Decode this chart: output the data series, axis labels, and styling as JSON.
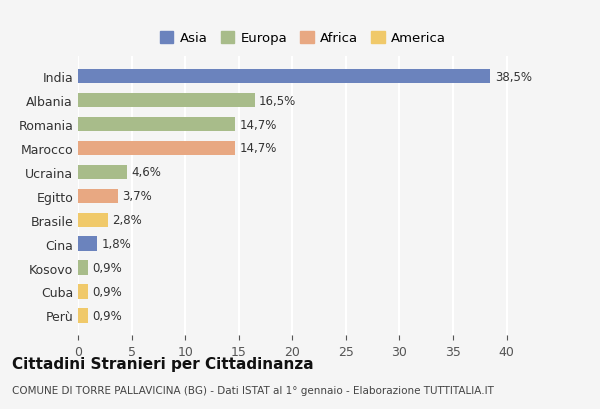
{
  "countries": [
    "India",
    "Albania",
    "Romania",
    "Marocco",
    "Ucraina",
    "Egitto",
    "Brasile",
    "Cina",
    "Kosovo",
    "Cuba",
    "Perù"
  ],
  "values": [
    38.5,
    16.5,
    14.7,
    14.7,
    4.6,
    3.7,
    2.8,
    1.8,
    0.9,
    0.9,
    0.9
  ],
  "labels": [
    "38,5%",
    "16,5%",
    "14,7%",
    "14,7%",
    "4,6%",
    "3,7%",
    "2,8%",
    "1,8%",
    "0,9%",
    "0,9%",
    "0,9%"
  ],
  "continents": [
    "Asia",
    "Europa",
    "Europa",
    "Africa",
    "Europa",
    "Africa",
    "America",
    "Asia",
    "Europa",
    "America",
    "America"
  ],
  "continent_colors": {
    "Asia": "#6b83bd",
    "Europa": "#a8bc8a",
    "Africa": "#e8a882",
    "America": "#f0c96a"
  },
  "legend_order": [
    "Asia",
    "Europa",
    "Africa",
    "America"
  ],
  "title": "Cittadini Stranieri per Cittadinanza",
  "subtitle": "COMUNE DI TORRE PALLAVICINA (BG) - Dati ISTAT al 1° gennaio - Elaborazione TUTTITALIA.IT",
  "xlim": [
    0,
    42
  ],
  "xticks": [
    0,
    5,
    10,
    15,
    20,
    25,
    30,
    35,
    40
  ],
  "background_color": "#f5f5f5",
  "grid_color": "#ffffff",
  "bar_height": 0.6
}
